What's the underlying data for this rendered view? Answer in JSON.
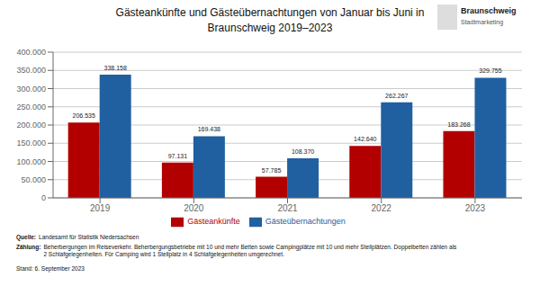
{
  "chart_data": {
    "type": "bar",
    "title": "Gästeankünfte und Gästeübernachtungen von Januar bis Juni in\nBraunschweig 2019–2023",
    "categories": [
      "2019",
      "2020",
      "2021",
      "2022",
      "2023"
    ],
    "series": [
      {
        "name": "Gästeankünfte",
        "color": "#b20000",
        "values": [
          206535,
          97131,
          57785,
          142640,
          183268
        ],
        "value_labels": [
          "206.535",
          "97.131",
          "57.785",
          "142.640",
          "183.268"
        ]
      },
      {
        "name": "Gästeübernachtungen",
        "color": "#2060a0",
        "values": [
          338158,
          169438,
          108370,
          262267,
          329755
        ],
        "value_labels": [
          "338.158",
          "169.438",
          "108.370",
          "262.267",
          "329.755"
        ]
      }
    ],
    "ylim": [
      0,
      400000
    ],
    "yticks": [
      0,
      {
        "value": 50000,
        "label": "50.000"
      },
      {
        "value": 100000,
        "label": "100.000"
      },
      {
        "value": 150000,
        "label": "150.000"
      },
      {
        "value": 200000,
        "label": "200.000"
      },
      {
        "value": 250000,
        "label": "250.000"
      },
      {
        "value": 300000,
        "label": "300.000"
      },
      {
        "value": 350000,
        "label": "350.000"
      },
      {
        "value": 400000,
        "label": "400.000"
      }
    ],
    "grid": true,
    "data_labels": true,
    "legend": "bottom",
    "annotations": [
      "Quelle:",
      "Landesamt für Statistik Niedersachsen",
      "Zählung:",
      "Beherbergungen im Reiseverkehr. Beherbergungsbetriebe mit 10 und mehr Betten sowie Campingplätze mit 10 und mehr Stellplätzen. Doppelbetten zählen als\n2 Schlafgelegenheiten. Für Camping wird 1 Stellplatz in 4 Schlafgelegenheiten umgerechnet.",
      "Stand: 6. September 2023",
      "Braunschweig",
      "Stadtmarketing"
    ]
  }
}
